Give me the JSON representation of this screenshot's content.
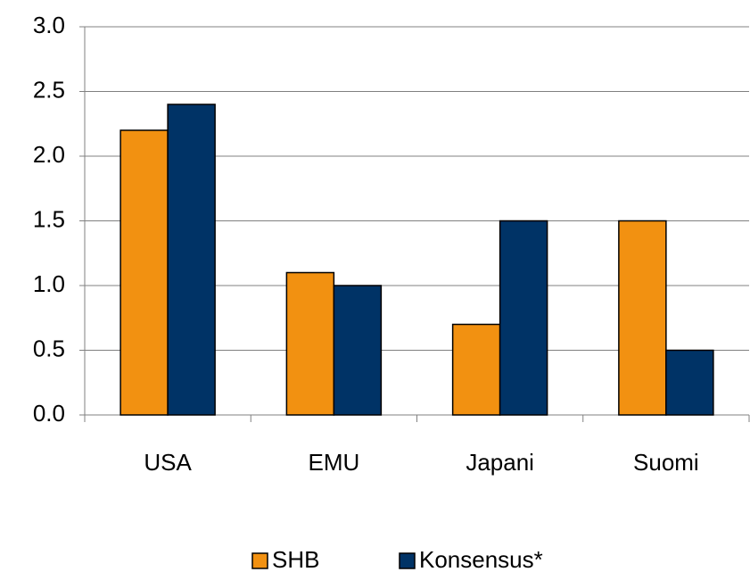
{
  "chart_data": {
    "type": "bar",
    "categories": [
      "USA",
      "EMU",
      "Japani",
      "Suomi"
    ],
    "series": [
      {
        "name": "SHB",
        "color": "#f29111",
        "values": [
          2.2,
          1.1,
          0.7,
          1.5
        ]
      },
      {
        "name": "Konsensus*",
        "color": "#003366",
        "values": [
          2.4,
          1.0,
          1.5,
          0.5
        ]
      }
    ],
    "ylim": [
      0,
      3
    ],
    "yticks": [
      {
        "value": 0,
        "label": "0.0"
      },
      0.5,
      {
        "value": 1,
        "label": "1.0"
      },
      1.5,
      {
        "value": 2,
        "label": "2.0"
      },
      2.5,
      {
        "value": 3,
        "label": "3.0"
      }
    ],
    "grid": true,
    "legend": "bottom"
  }
}
